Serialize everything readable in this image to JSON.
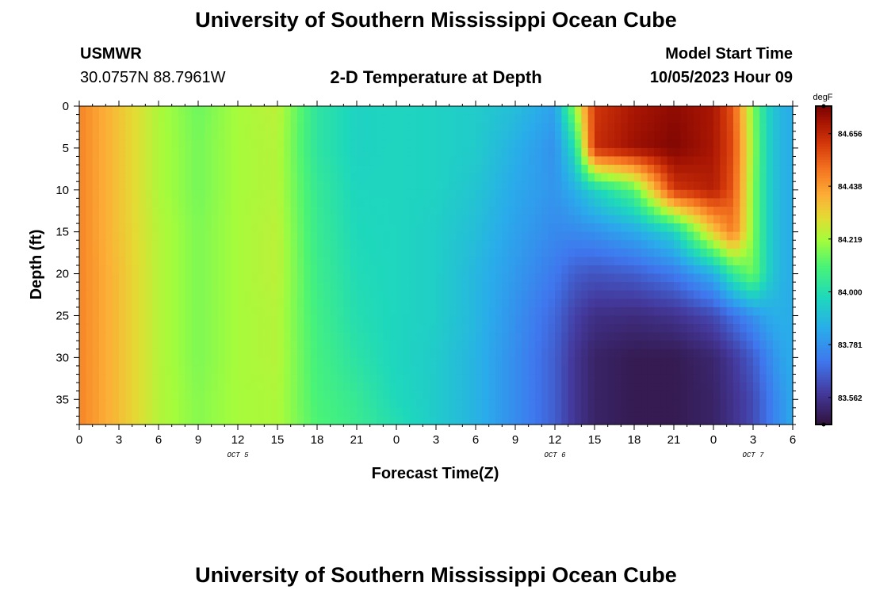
{
  "header": {
    "title": "University of Southern Mississippi Ocean Cube",
    "station_name": "USMWR",
    "coordinates": "30.0757N  88.7961W",
    "plot_title": "2-D Temperature at Depth",
    "model_label": "Model Start Time",
    "model_time": "10/05/2023 Hour 09"
  },
  "footer": {
    "title": "University of Southern Mississippi Ocean Cube"
  },
  "chart_data": {
    "type": "heatmap",
    "title": "2-D Temperature at Depth",
    "xlabel": "Forecast Time(Z)",
    "ylabel": "Depth (ft)",
    "xlim": [
      0,
      54
    ],
    "ylim": [
      0,
      38
    ],
    "x_ticks": [
      {
        "x": 0,
        "label": "0"
      },
      {
        "x": 3,
        "label": "3"
      },
      {
        "x": 6,
        "label": "6"
      },
      {
        "x": 9,
        "label": "9"
      },
      {
        "x": 12,
        "label": "12"
      },
      {
        "x": 15,
        "label": "15"
      },
      {
        "x": 18,
        "label": "18"
      },
      {
        "x": 21,
        "label": "21"
      },
      {
        "x": 24,
        "label": "0"
      },
      {
        "x": 27,
        "label": "3"
      },
      {
        "x": 30,
        "label": "6"
      },
      {
        "x": 33,
        "label": "9"
      },
      {
        "x": 36,
        "label": "12"
      },
      {
        "x": 39,
        "label": "15"
      },
      {
        "x": 42,
        "label": "18"
      },
      {
        "x": 45,
        "label": "21"
      },
      {
        "x": 48,
        "label": "0"
      },
      {
        "x": 51,
        "label": "3"
      },
      {
        "x": 54,
        "label": "6"
      }
    ],
    "y_ticks": [
      0,
      5,
      10,
      15,
      20,
      25,
      30,
      35
    ],
    "date_labels": [
      {
        "x": 12,
        "label": "OCT 5"
      },
      {
        "x": 36,
        "label": "OCT 6"
      },
      {
        "x": 51,
        "label": "OCT 7"
      }
    ],
    "colorbar": {
      "unit": "degF",
      "min": 83.45,
      "max": 84.77,
      "ticks": [
        "84.656",
        "84.438",
        "84.219",
        "84.000",
        "83.781",
        "83.562"
      ],
      "tick_values": [
        84.656,
        84.438,
        84.219,
        84.0,
        83.781,
        83.562
      ]
    },
    "time_grid": [
      0,
      3,
      6,
      9,
      12,
      15,
      18,
      21,
      24,
      27,
      30,
      33,
      36,
      37.5,
      39,
      42,
      45,
      48,
      49.5,
      51,
      52,
      53,
      54
    ],
    "depth_grid": [
      0,
      5,
      10,
      15,
      20,
      25,
      30,
      35,
      38
    ],
    "temperature_degF": [
      [
        84.48,
        84.36,
        84.23,
        84.15,
        84.22,
        84.25,
        84.03,
        83.96,
        83.97,
        83.96,
        83.94,
        83.9,
        83.82,
        84.2,
        84.62,
        84.7,
        84.74,
        84.7,
        84.56,
        84.18,
        83.98,
        83.88,
        83.85
      ],
      [
        84.48,
        84.36,
        84.23,
        84.16,
        84.22,
        84.24,
        84.03,
        83.96,
        83.97,
        83.96,
        83.94,
        83.86,
        83.78,
        84.0,
        84.64,
        84.72,
        84.76,
        84.7,
        84.58,
        84.2,
        83.98,
        83.88,
        83.85
      ],
      [
        84.48,
        84.36,
        84.23,
        84.16,
        84.22,
        84.24,
        84.05,
        83.97,
        83.97,
        83.96,
        83.92,
        83.84,
        83.79,
        83.86,
        83.96,
        84.12,
        84.62,
        84.68,
        84.56,
        84.18,
        83.98,
        83.88,
        83.85
      ],
      [
        84.48,
        84.36,
        84.24,
        84.17,
        84.22,
        84.25,
        84.06,
        83.98,
        83.97,
        83.95,
        83.9,
        83.82,
        83.76,
        83.76,
        83.78,
        83.84,
        83.96,
        84.35,
        84.5,
        84.18,
        83.98,
        83.88,
        83.85
      ],
      [
        84.48,
        84.37,
        84.24,
        84.17,
        84.22,
        84.25,
        84.07,
        83.99,
        83.97,
        83.95,
        83.88,
        83.8,
        83.72,
        83.66,
        83.64,
        83.66,
        83.72,
        83.86,
        84.05,
        84.16,
        83.98,
        83.88,
        83.85
      ],
      [
        84.48,
        84.37,
        84.24,
        84.17,
        84.22,
        84.24,
        84.08,
        84.0,
        83.97,
        83.95,
        83.88,
        83.78,
        83.68,
        83.6,
        83.55,
        83.54,
        83.56,
        83.62,
        83.7,
        83.78,
        83.84,
        83.86,
        83.85
      ],
      [
        84.48,
        84.37,
        84.24,
        84.17,
        84.22,
        84.24,
        84.09,
        84.02,
        83.97,
        83.94,
        83.87,
        83.77,
        83.66,
        83.57,
        83.51,
        83.48,
        83.48,
        83.52,
        83.58,
        83.66,
        83.74,
        83.82,
        83.85
      ],
      [
        84.48,
        84.37,
        84.24,
        84.18,
        84.22,
        84.23,
        84.1,
        84.05,
        83.98,
        83.94,
        83.87,
        83.77,
        83.66,
        83.57,
        83.51,
        83.48,
        83.48,
        83.51,
        83.56,
        83.62,
        83.7,
        83.78,
        83.84
      ],
      [
        84.48,
        84.37,
        84.24,
        84.18,
        84.22,
        84.23,
        84.11,
        84.06,
        84.0,
        83.94,
        83.87,
        83.77,
        83.66,
        83.57,
        83.51,
        83.48,
        83.48,
        83.51,
        83.56,
        83.62,
        83.7,
        83.78,
        83.84
      ]
    ]
  }
}
